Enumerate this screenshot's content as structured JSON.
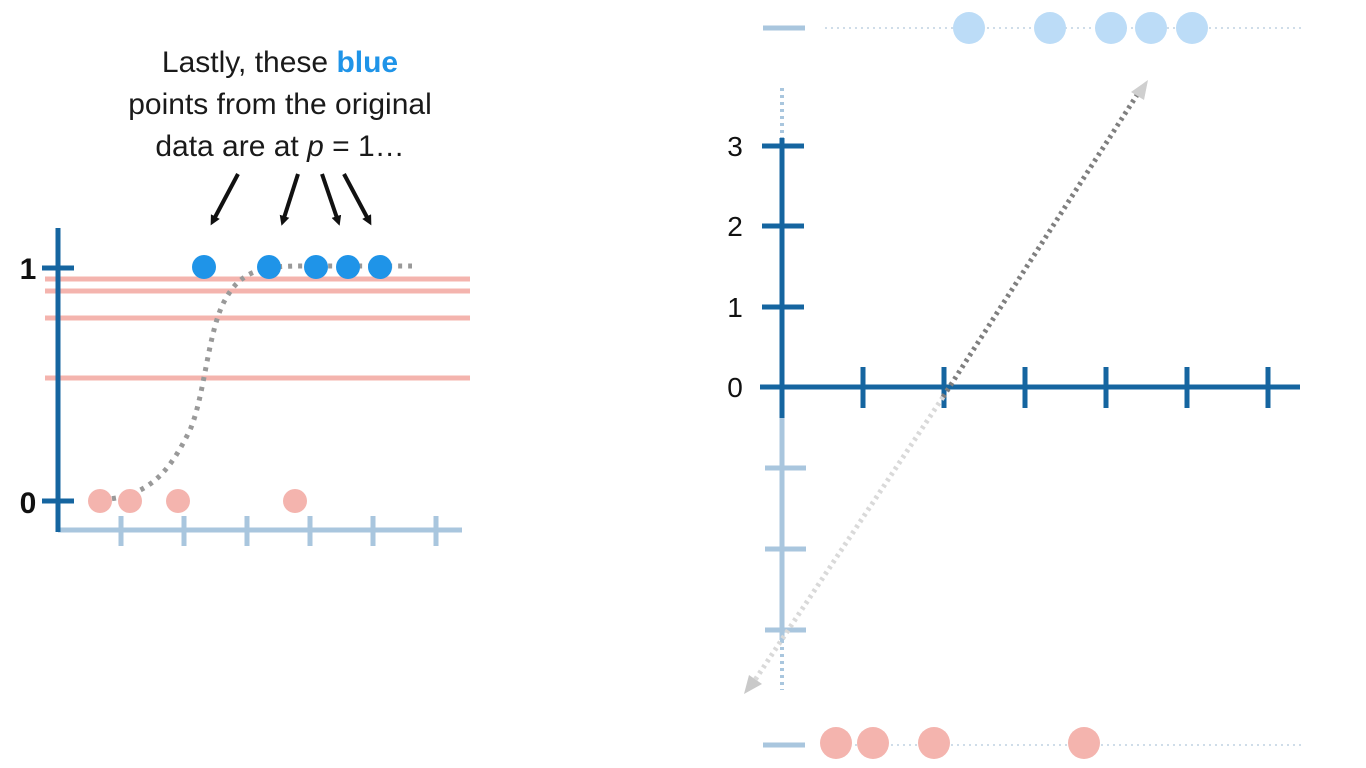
{
  "caption": {
    "line1_prefix": "Lastly, these ",
    "line1_highlight": "blue",
    "line2": "points from the original",
    "line3_prefix": "data are at ",
    "line3_var": "p",
    "line3_suffix": " = 1…"
  },
  "left_plot": {
    "y_tick_labels": [
      "0",
      "1"
    ],
    "blue_points_count": 5,
    "red_points_count": 4
  },
  "right_plot": {
    "y_tick_labels": [
      "0",
      "1",
      "2",
      "3"
    ]
  },
  "colors": {
    "axis_dark": "#1565a0",
    "axis_light": "#a9c6de",
    "blue_point": "#1f94e8",
    "blue_point_light": "#bcdcf7",
    "red_point": "#f4b4ae",
    "red_line": "#f4b4ae",
    "curve": "#999999"
  }
}
